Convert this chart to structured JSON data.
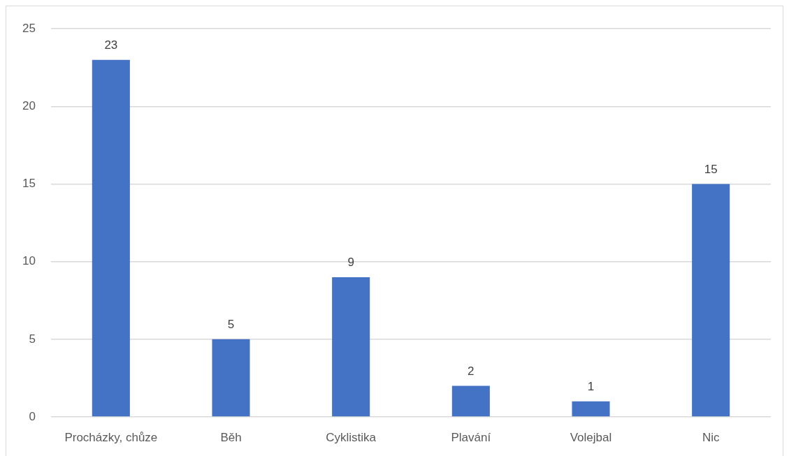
{
  "chart_data": {
    "type": "bar",
    "categories": [
      "Procházky, chůze",
      "Běh",
      "Cyklistika",
      "Plavání",
      "Volejbal",
      "Nic"
    ],
    "values": [
      23,
      5,
      9,
      2,
      1,
      15
    ],
    "color": "#4472c4",
    "ylim": [
      0,
      25
    ],
    "yticks": [
      0,
      5,
      10,
      15,
      20,
      25
    ],
    "grid": "y",
    "data_labels": true
  }
}
